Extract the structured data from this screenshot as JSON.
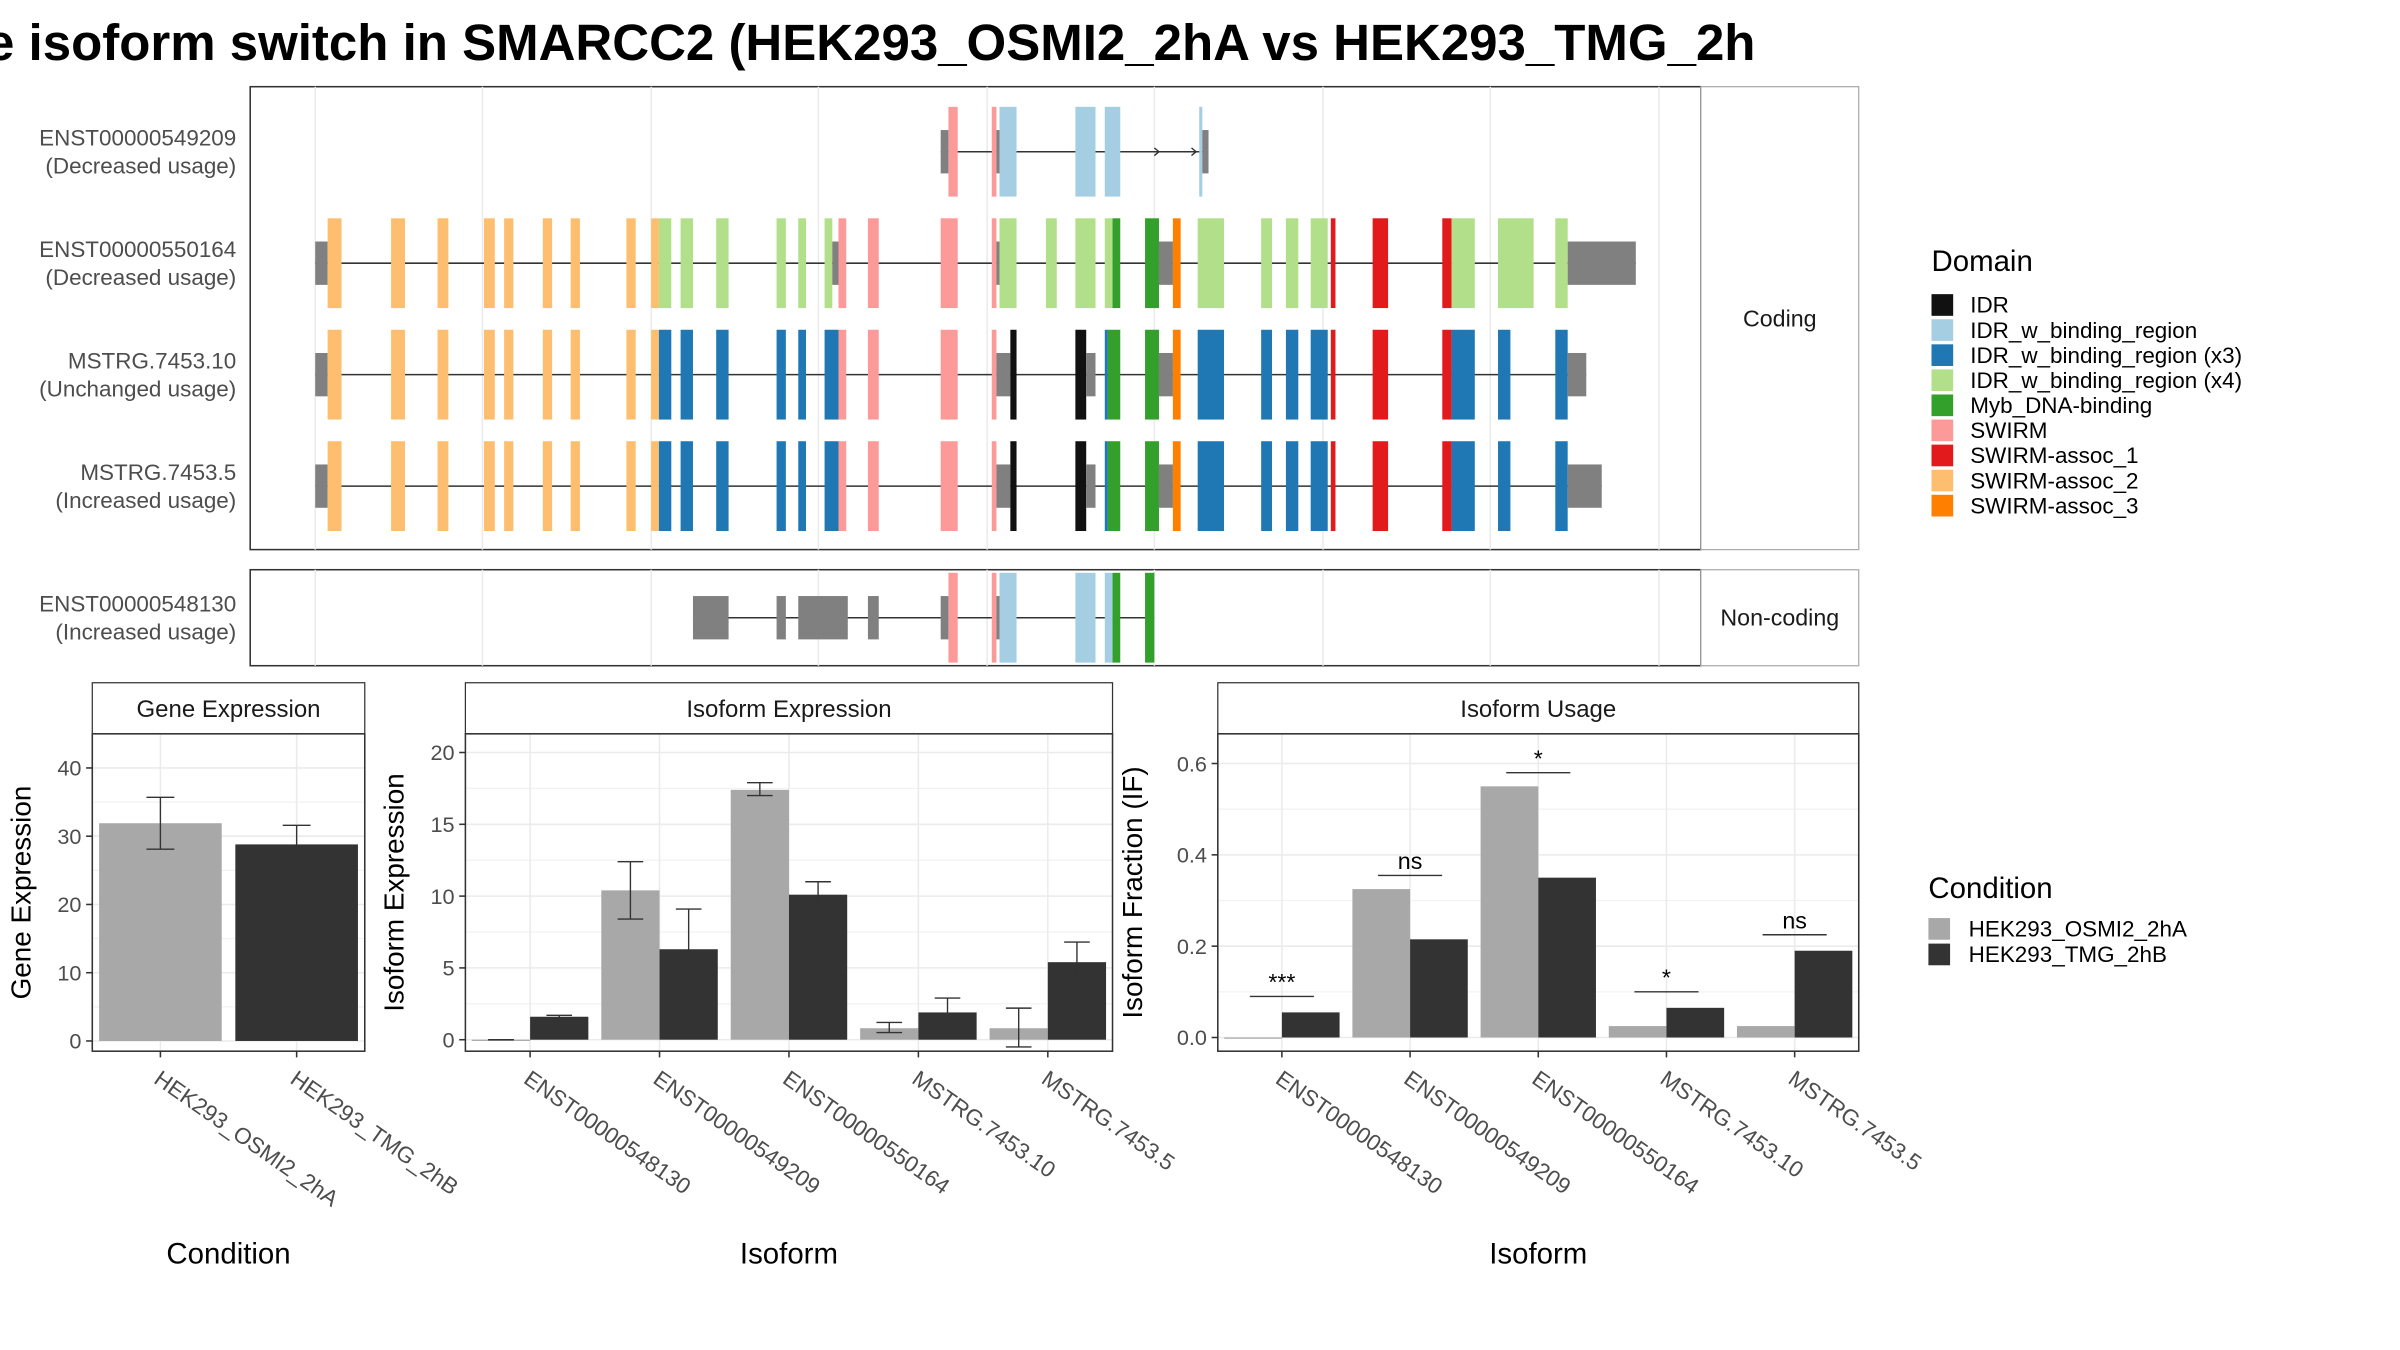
{
  "title": "e isoform switch in SMARCC2 (HEK293_OSMI2_2hA vs HEK293_TMG_2h",
  "colors": {
    "IDR": "#111111",
    "IDR_w_binding_region": "#a6cee3",
    "IDR_w_binding_region (x3)": "#1f78b4",
    "IDR_w_binding_region (x4)": "#b2df8a",
    "Myb_DNA-binding": "#33a02c",
    "SWIRM": "#fb9a99",
    "SWIRM-assoc_1": "#e31a1c",
    "SWIRM-assoc_2": "#fdbf6f",
    "SWIRM-assoc_3": "#ff7f00",
    "none": "#808080",
    "cond1": "#a8a8a8",
    "cond2": "#333333"
  },
  "domain_legend": {
    "title": "Domain",
    "items": [
      "IDR",
      "IDR_w_binding_region",
      "IDR_w_binding_region (x3)",
      "IDR_w_binding_region (x4)",
      "Myb_DNA-binding",
      "SWIRM",
      "SWIRM-assoc_1",
      "SWIRM-assoc_2",
      "SWIRM-assoc_3"
    ]
  },
  "condition_legend": {
    "title": "Condition",
    "items": [
      "HEK293_OSMI2_2hA",
      "HEK293_TMG_2hB"
    ]
  },
  "panels": {
    "coding_label": "Coding",
    "noncoding_label": "Non-coding"
  },
  "isoforms": [
    {
      "name": "ENST00000549209",
      "usage": "(Decreased usage)",
      "arrow": true,
      "exons": [
        [
          607,
          612,
          "none"
        ],
        [
          612,
          618,
          "SWIRM"
        ],
        [
          640,
          643,
          "SWIRM"
        ],
        [
          643,
          645,
          "none"
        ],
        [
          645,
          656,
          "IDR_w_binding_region"
        ],
        [
          694,
          707,
          "IDR_w_binding_region"
        ],
        [
          713,
          723,
          "IDR_w_binding_region"
        ],
        [
          774,
          776,
          "IDR_w_binding_region"
        ],
        [
          776,
          780,
          "none"
        ]
      ]
    },
    {
      "name": "ENST00000550164",
      "usage": "(Decreased usage)",
      "utr_end": [
        1012,
        1056
      ],
      "exons": [
        [
          203,
          211,
          "none"
        ],
        [
          211,
          220,
          "SWIRM-assoc_2"
        ],
        [
          252,
          261,
          "SWIRM-assoc_2"
        ],
        [
          282,
          289,
          "SWIRM-assoc_2"
        ],
        [
          312,
          319,
          "SWIRM-assoc_2"
        ],
        [
          325,
          331,
          "SWIRM-assoc_2"
        ],
        [
          350,
          356,
          "SWIRM-assoc_2"
        ],
        [
          368,
          374,
          "SWIRM-assoc_2"
        ],
        [
          404,
          410,
          "SWIRM-assoc_2"
        ],
        [
          420,
          425,
          "SWIRM-assoc_2"
        ],
        [
          425,
          433,
          "IDR_w_binding_region (x4)"
        ],
        [
          439,
          447,
          "IDR_w_binding_region (x4)"
        ],
        [
          462,
          470,
          "IDR_w_binding_region (x4)"
        ],
        [
          501,
          507,
          "IDR_w_binding_region (x4)"
        ],
        [
          515,
          520,
          "IDR_w_binding_region (x4)"
        ],
        [
          532,
          537,
          "IDR_w_binding_region (x4)"
        ],
        [
          537,
          541,
          "none"
        ],
        [
          541,
          546,
          "SWIRM"
        ],
        [
          560,
          567,
          "SWIRM"
        ],
        [
          607,
          618,
          "SWIRM"
        ],
        [
          640,
          643,
          "SWIRM"
        ],
        [
          643,
          645,
          "none"
        ],
        [
          645,
          656,
          "IDR_w_binding_region (x4)"
        ],
        [
          675,
          682,
          "IDR_w_binding_region (x4)"
        ],
        [
          694,
          707,
          "IDR_w_binding_region (x4)"
        ],
        [
          713,
          718,
          "IDR_w_binding_region (x4)"
        ],
        [
          718,
          723,
          "Myb_DNA-binding"
        ],
        [
          739,
          748,
          "Myb_DNA-binding"
        ],
        [
          748,
          757,
          "none"
        ],
        [
          757,
          762,
          "SWIRM-assoc_3"
        ],
        [
          773,
          790,
          "IDR_w_binding_region (x4)"
        ],
        [
          814,
          821,
          "IDR_w_binding_region (x4)"
        ],
        [
          830,
          838,
          "IDR_w_binding_region (x4)"
        ],
        [
          846,
          857,
          "IDR_w_binding_region (x4)"
        ],
        [
          859,
          862,
          "SWIRM-assoc_1"
        ],
        [
          886,
          896,
          "SWIRM-assoc_1"
        ],
        [
          931,
          937,
          "SWIRM-assoc_1"
        ],
        [
          937,
          952,
          "IDR_w_binding_region (x4)"
        ],
        [
          967,
          990,
          "IDR_w_binding_region (x4)"
        ],
        [
          1004,
          1012,
          "IDR_w_binding_region (x4)"
        ]
      ]
    },
    {
      "name": "MSTRG.7453.10",
      "usage": "(Unchanged usage)",
      "utr_end": [
        1012,
        1024
      ],
      "exons": [
        [
          203,
          211,
          "none"
        ],
        [
          211,
          220,
          "SWIRM-assoc_2"
        ],
        [
          252,
          261,
          "SWIRM-assoc_2"
        ],
        [
          282,
          289,
          "SWIRM-assoc_2"
        ],
        [
          312,
          319,
          "SWIRM-assoc_2"
        ],
        [
          325,
          331,
          "SWIRM-assoc_2"
        ],
        [
          350,
          356,
          "SWIRM-assoc_2"
        ],
        [
          368,
          374,
          "SWIRM-assoc_2"
        ],
        [
          404,
          410,
          "SWIRM-assoc_2"
        ],
        [
          420,
          425,
          "SWIRM-assoc_2"
        ],
        [
          425,
          433,
          "IDR_w_binding_region (x3)"
        ],
        [
          439,
          447,
          "IDR_w_binding_region (x3)"
        ],
        [
          462,
          470,
          "IDR_w_binding_region (x3)"
        ],
        [
          501,
          507,
          "IDR_w_binding_region (x3)"
        ],
        [
          515,
          520,
          "IDR_w_binding_region (x3)"
        ],
        [
          532,
          541,
          "IDR_w_binding_region (x3)"
        ],
        [
          541,
          546,
          "SWIRM"
        ],
        [
          560,
          567,
          "SWIRM"
        ],
        [
          607,
          618,
          "SWIRM"
        ],
        [
          640,
          643,
          "SWIRM"
        ],
        [
          643,
          652,
          "none"
        ],
        [
          652,
          656,
          "IDR"
        ],
        [
          694,
          701,
          "IDR"
        ],
        [
          701,
          707,
          "none"
        ],
        [
          713,
          715,
          "IDR_w_binding_region (x3)"
        ],
        [
          715,
          723,
          "Myb_DNA-binding"
        ],
        [
          739,
          748,
          "Myb_DNA-binding"
        ],
        [
          748,
          757,
          "none"
        ],
        [
          757,
          762,
          "SWIRM-assoc_3"
        ],
        [
          773,
          790,
          "IDR_w_binding_region (x3)"
        ],
        [
          814,
          821,
          "IDR_w_binding_region (x3)"
        ],
        [
          830,
          838,
          "IDR_w_binding_region (x3)"
        ],
        [
          846,
          857,
          "IDR_w_binding_region (x3)"
        ],
        [
          859,
          862,
          "SWIRM-assoc_1"
        ],
        [
          886,
          896,
          "SWIRM-assoc_1"
        ],
        [
          931,
          937,
          "SWIRM-assoc_1"
        ],
        [
          937,
          952,
          "IDR_w_binding_region (x3)"
        ],
        [
          967,
          975,
          "IDR_w_binding_region (x3)"
        ],
        [
          1004,
          1012,
          "IDR_w_binding_region (x3)"
        ]
      ]
    },
    {
      "name": "MSTRG.7453.5",
      "usage": "(Increased usage)",
      "utr_end": [
        1012,
        1034
      ],
      "exons": [
        [
          203,
          211,
          "none"
        ],
        [
          211,
          220,
          "SWIRM-assoc_2"
        ],
        [
          252,
          261,
          "SWIRM-assoc_2"
        ],
        [
          282,
          289,
          "SWIRM-assoc_2"
        ],
        [
          312,
          319,
          "SWIRM-assoc_2"
        ],
        [
          325,
          331,
          "SWIRM-assoc_2"
        ],
        [
          350,
          356,
          "SWIRM-assoc_2"
        ],
        [
          368,
          374,
          "SWIRM-assoc_2"
        ],
        [
          404,
          410,
          "SWIRM-assoc_2"
        ],
        [
          420,
          425,
          "SWIRM-assoc_2"
        ],
        [
          425,
          433,
          "IDR_w_binding_region (x3)"
        ],
        [
          439,
          447,
          "IDR_w_binding_region (x3)"
        ],
        [
          462,
          470,
          "IDR_w_binding_region (x3)"
        ],
        [
          501,
          507,
          "IDR_w_binding_region (x3)"
        ],
        [
          515,
          520,
          "IDR_w_binding_region (x3)"
        ],
        [
          532,
          541,
          "IDR_w_binding_region (x3)"
        ],
        [
          541,
          546,
          "SWIRM"
        ],
        [
          560,
          567,
          "SWIRM"
        ],
        [
          607,
          618,
          "SWIRM"
        ],
        [
          640,
          643,
          "SWIRM"
        ],
        [
          643,
          652,
          "none"
        ],
        [
          652,
          656,
          "IDR"
        ],
        [
          694,
          701,
          "IDR"
        ],
        [
          701,
          707,
          "none"
        ],
        [
          713,
          715,
          "IDR_w_binding_region (x3)"
        ],
        [
          715,
          723,
          "Myb_DNA-binding"
        ],
        [
          739,
          748,
          "Myb_DNA-binding"
        ],
        [
          748,
          757,
          "none"
        ],
        [
          757,
          762,
          "SWIRM-assoc_3"
        ],
        [
          773,
          790,
          "IDR_w_binding_region (x3)"
        ],
        [
          814,
          821,
          "IDR_w_binding_region (x3)"
        ],
        [
          830,
          838,
          "IDR_w_binding_region (x3)"
        ],
        [
          846,
          857,
          "IDR_w_binding_region (x3)"
        ],
        [
          859,
          862,
          "SWIRM-assoc_1"
        ],
        [
          886,
          896,
          "SWIRM-assoc_1"
        ],
        [
          931,
          937,
          "SWIRM-assoc_1"
        ],
        [
          937,
          952,
          "IDR_w_binding_region (x3)"
        ],
        [
          967,
          975,
          "IDR_w_binding_region (x3)"
        ],
        [
          1004,
          1012,
          "IDR_w_binding_region (x3)"
        ]
      ]
    },
    {
      "name": "ENST00000548130",
      "usage": "(Increased usage)",
      "noncoding": true,
      "exons": [
        [
          447,
          470,
          "none"
        ],
        [
          501,
          507,
          "none"
        ],
        [
          515,
          547,
          "none"
        ],
        [
          560,
          567,
          "none"
        ],
        [
          607,
          612,
          "none"
        ],
        [
          612,
          618,
          "SWIRM"
        ],
        [
          640,
          643,
          "SWIRM"
        ],
        [
          643,
          645,
          "none"
        ],
        [
          645,
          656,
          "IDR_w_binding_region"
        ],
        [
          694,
          707,
          "IDR_w_binding_region"
        ],
        [
          713,
          718,
          "IDR_w_binding_region"
        ],
        [
          718,
          723,
          "Myb_DNA-binding"
        ],
        [
          739,
          745,
          "Myb_DNA-binding"
        ]
      ]
    }
  ],
  "chart_data": [
    {
      "type": "bar",
      "title": "Gene Expression",
      "xlabel": "Condition",
      "ylabel": "Gene Expression",
      "ylim": [
        -1.5,
        45
      ],
      "yticks": [
        0,
        10,
        20,
        30,
        40
      ],
      "categories": [
        "HEK293_OSMI2_2hA",
        "HEK293_TMG_2hB"
      ],
      "values": [
        31.9,
        28.8
      ],
      "errors": [
        [
          28.1,
          35.7
        ],
        [
          25.9,
          31.6
        ]
      ]
    },
    {
      "type": "bar",
      "title": "Isoform Expression",
      "xlabel": "Isoform",
      "ylabel": "Isoform Expression",
      "ylim": [
        -0.8,
        21.3
      ],
      "yticks": [
        0,
        5,
        10,
        15,
        20
      ],
      "categories": [
        "ENST00000548130",
        "ENST00000549209",
        "ENST00000550164",
        "MSTRG.7453.10",
        "MSTRG.7453.5"
      ],
      "series": [
        {
          "name": "HEK293_OSMI2_2hA",
          "values": [
            0.0,
            10.4,
            17.4,
            0.8,
            0.8
          ],
          "errors": [
            [
              0.0,
              0.0
            ],
            [
              8.4,
              12.4
            ],
            [
              17.0,
              17.9
            ],
            [
              0.5,
              1.2
            ],
            [
              -0.5,
              2.2
            ]
          ]
        },
        {
          "name": "HEK293_TMG_2hB",
          "values": [
            1.6,
            6.3,
            10.1,
            1.9,
            5.4
          ],
          "errors": [
            [
              1.5,
              1.7
            ],
            [
              3.5,
              9.1
            ],
            [
              9.2,
              11.0
            ],
            [
              0.9,
              2.9
            ],
            [
              4.2,
              6.8
            ]
          ]
        }
      ]
    },
    {
      "type": "bar",
      "title": "Isoform Usage",
      "xlabel": "Isoform",
      "ylabel": "Isoform Fraction (IF)",
      "ylim": [
        -0.03,
        0.665
      ],
      "yticks": [
        "0.0",
        "0.2",
        "0.4",
        "0.6"
      ],
      "categories": [
        "ENST00000548130",
        "ENST00000549209",
        "ENST00000550164",
        "MSTRG.7453.10",
        "MSTRG.7453.5"
      ],
      "series": [
        {
          "name": "HEK293_OSMI2_2hA",
          "values": [
            0.0,
            0.325,
            0.55,
            0.025,
            0.025
          ]
        },
        {
          "name": "HEK293_TMG_2hB",
          "values": [
            0.055,
            0.215,
            0.35,
            0.065,
            0.19
          ]
        }
      ],
      "significance": [
        {
          "label": "***",
          "y": 0.09
        },
        {
          "label": "ns",
          "y": 0.355
        },
        {
          "label": "*",
          "y": 0.58
        },
        {
          "label": "*",
          "y": 0.1
        },
        {
          "label": "ns",
          "y": 0.225
        }
      ]
    }
  ]
}
